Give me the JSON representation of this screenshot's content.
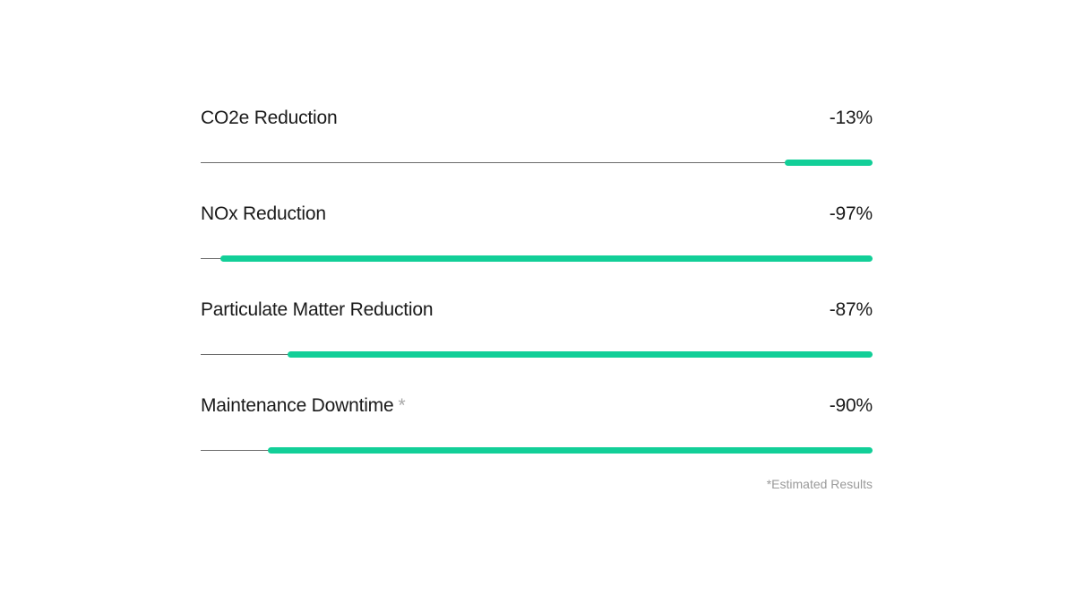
{
  "chart_data": {
    "type": "bar",
    "orientation": "horizontal",
    "categories": [
      "CO2e Reduction",
      "NOx Reduction",
      "Particulate Matter Reduction",
      "Maintenance Downtime"
    ],
    "values": [
      -13,
      -97,
      -87,
      -90
    ],
    "value_labels": [
      "-13%",
      "-97%",
      "-87%",
      "-90%"
    ],
    "asterisked": [
      false,
      false,
      false,
      true
    ],
    "asterisk": "*",
    "unit": "%",
    "xlim": [
      0,
      100
    ],
    "footnote": "*Estimated Results",
    "grid": false,
    "legend": "none",
    "colors": {
      "fill": "#12cf98",
      "track": "#6b6b6b"
    }
  }
}
